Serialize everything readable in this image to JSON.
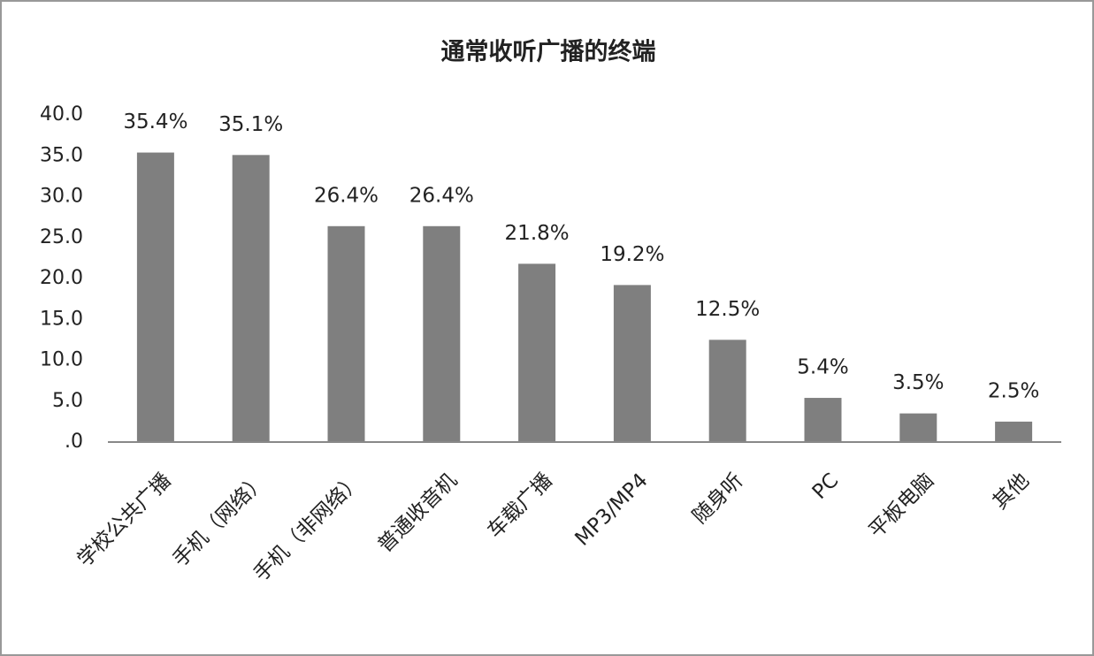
{
  "chart_data": {
    "type": "bar",
    "title": "通常收听广播的终端",
    "categories": [
      "学校公共广播",
      "手机（网络）",
      "手机（非网络）",
      "普通收音机",
      "车载广播",
      "MP3/MP4",
      "随身听",
      "PC",
      "平板电脑",
      "其他"
    ],
    "values": [
      35.4,
      35.1,
      26.4,
      26.4,
      21.8,
      19.2,
      12.5,
      5.4,
      3.5,
      2.5
    ],
    "value_labels": [
      "35.4%",
      "35.1%",
      "26.4%",
      "26.4%",
      "21.8%",
      "19.2%",
      "12.5%",
      "5.4%",
      "3.5%",
      "2.5%"
    ],
    "color": "#7f7f7f",
    "ylim": [
      0,
      40
    ],
    "yticks": [
      {
        "value": 0,
        "label": ".0"
      },
      {
        "value": 5,
        "label": "5.0"
      },
      {
        "value": 10,
        "label": "10.0"
      },
      {
        "value": 15,
        "label": "15.0"
      },
      {
        "value": 20,
        "label": "20.0"
      },
      {
        "value": 25,
        "label": "25.0"
      },
      {
        "value": 30,
        "label": "30.0"
      },
      {
        "value": 35,
        "label": "35.0"
      },
      {
        "value": 40,
        "label": "40.0"
      }
    ],
    "grid": false
  }
}
